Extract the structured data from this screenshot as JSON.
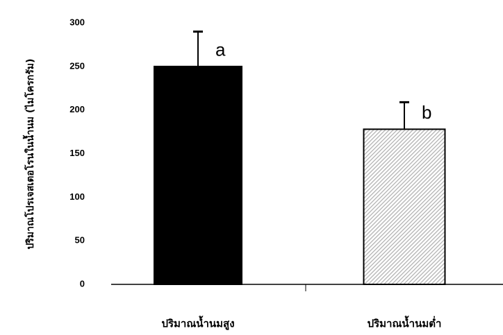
{
  "chart_data": {
    "type": "bar",
    "y_label": "ปริมาณโปรเจสเตอโรนในน้ำนม (ไมโครกรัม)",
    "categories": [
      "ปริมาณน้ำนมสูง",
      "ปริมาณน้ำนมต่ำ"
    ],
    "values": [
      250,
      178
    ],
    "errors": [
      40,
      31
    ],
    "annotations": [
      "a",
      "b"
    ],
    "colors": [
      "#000000",
      "#b0b0b0"
    ],
    "ylim": [
      0,
      300
    ],
    "yticks": [
      0,
      50,
      100,
      150,
      200,
      250,
      300
    ]
  }
}
